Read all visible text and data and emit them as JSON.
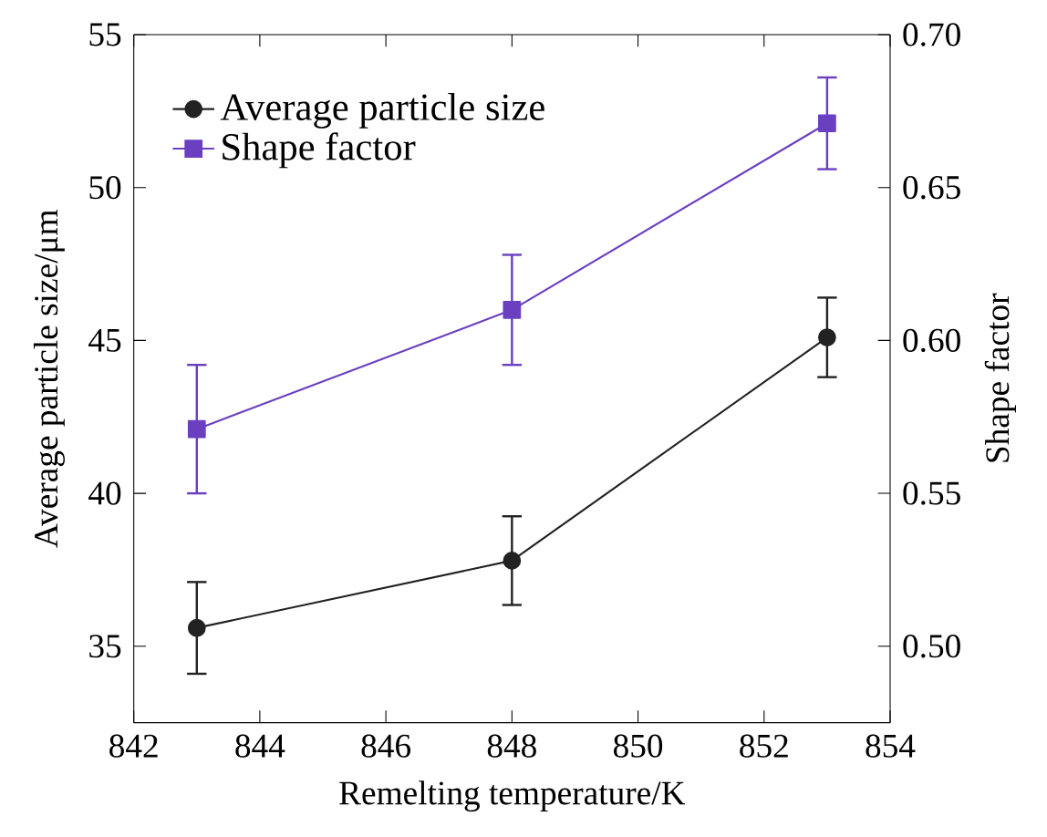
{
  "chart_data": {
    "type": "line",
    "xlabel": "Remelting temperature/K",
    "ylabel": "Average particle size/μm",
    "y2label": "Shape factor",
    "x": [
      843,
      848,
      853
    ],
    "series": [
      {
        "name": "Average particle size",
        "color": "#222222",
        "marker": "circle",
        "values": [
          35.6,
          37.8,
          45.1
        ],
        "errors": [
          1.5,
          1.45,
          1.3
        ]
      },
      {
        "name": "Shape factor",
        "color": "#6a3fc0",
        "marker": "square",
        "axis": "y2",
        "values": [
          0.571,
          0.61,
          0.671
        ],
        "errors": [
          0.021,
          0.018,
          0.015
        ]
      }
    ],
    "xlim": [
      842,
      854
    ],
    "xticks": [
      842,
      844,
      846,
      848,
      850,
      852,
      854
    ],
    "ylim": [
      32.5,
      55
    ],
    "yticks": [
      35,
      40,
      45,
      50,
      55
    ],
    "y2lim": [
      0.475,
      0.7
    ],
    "y2ticks": [
      {
        "value": 0.5,
        "label": "0.50"
      },
      {
        "value": 0.55,
        "label": "0.55"
      },
      {
        "value": 0.6,
        "label": "0.60"
      },
      {
        "value": 0.65,
        "label": "0.65"
      },
      {
        "value": 0.7,
        "label": "0.70"
      }
    ],
    "grid": false,
    "legend": "top left"
  }
}
